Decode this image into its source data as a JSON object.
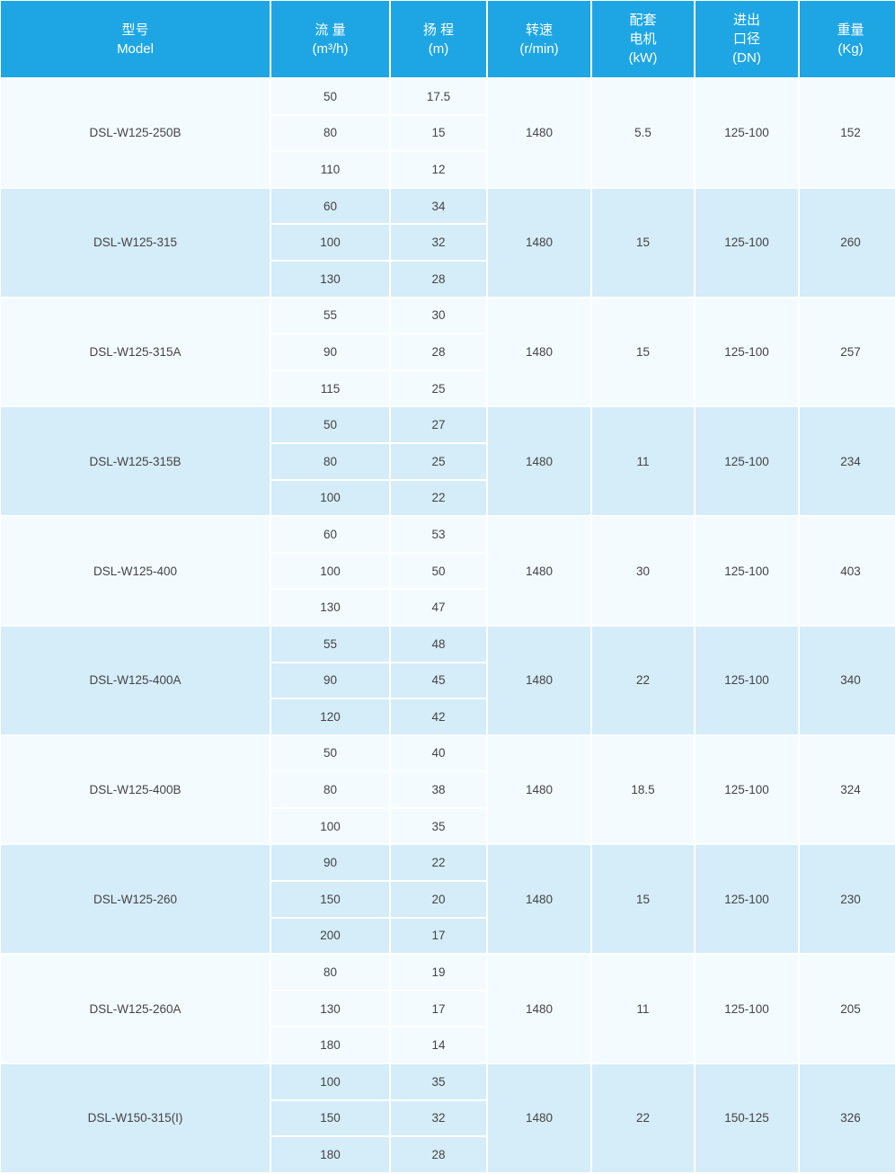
{
  "colors": {
    "header_bg": "#1ea6e4",
    "row_light": "#f3fbff",
    "row_dark": "#d5ecf9"
  },
  "headers": [
    [
      "型号",
      "Model"
    ],
    [
      "流 量",
      "(m³/h)"
    ],
    [
      "扬 程",
      "(m)"
    ],
    [
      "转速",
      "(r/min)"
    ],
    [
      "配套",
      "电机",
      "(kW)"
    ],
    [
      "进出",
      "口径",
      "(DN)"
    ],
    [
      "重量",
      "(Kg)"
    ]
  ],
  "rows": [
    {
      "model": "DSL-W125-250B",
      "flow": [
        "50",
        "80",
        "110"
      ],
      "head": [
        "17.5",
        "15",
        "12"
      ],
      "speed": "1480",
      "power": "5.5",
      "dn": "125-100",
      "weight": "152"
    },
    {
      "model": "DSL-W125-315",
      "flow": [
        "60",
        "100",
        "130"
      ],
      "head": [
        "34",
        "32",
        "28"
      ],
      "speed": "1480",
      "power": "15",
      "dn": "125-100",
      "weight": "260"
    },
    {
      "model": "DSL-W125-315A",
      "flow": [
        "55",
        "90",
        "115"
      ],
      "head": [
        "30",
        "28",
        "25"
      ],
      "speed": "1480",
      "power": "15",
      "dn": "125-100",
      "weight": "257"
    },
    {
      "model": "DSL-W125-315B",
      "flow": [
        "50",
        "80",
        "100"
      ],
      "head": [
        "27",
        "25",
        "22"
      ],
      "speed": "1480",
      "power": "11",
      "dn": "125-100",
      "weight": "234"
    },
    {
      "model": "DSL-W125-400",
      "flow": [
        "60",
        "100",
        "130"
      ],
      "head": [
        "53",
        "50",
        "47"
      ],
      "speed": "1480",
      "power": "30",
      "dn": "125-100",
      "weight": "403"
    },
    {
      "model": "DSL-W125-400A",
      "flow": [
        "55",
        "90",
        "120"
      ],
      "head": [
        "48",
        "45",
        "42"
      ],
      "speed": "1480",
      "power": "22",
      "dn": "125-100",
      "weight": "340"
    },
    {
      "model": "DSL-W125-400B",
      "flow": [
        "50",
        "80",
        "100"
      ],
      "head": [
        "40",
        "38",
        "35"
      ],
      "speed": "1480",
      "power": "18.5",
      "dn": "125-100",
      "weight": "324"
    },
    {
      "model": "DSL-W125-260",
      "flow": [
        "90",
        "150",
        "200"
      ],
      "head": [
        "22",
        "20",
        "17"
      ],
      "speed": "1480",
      "power": "15",
      "dn": "125-100",
      "weight": "230"
    },
    {
      "model": "DSL-W125-260A",
      "flow": [
        "80",
        "130",
        "180"
      ],
      "head": [
        "19",
        "17",
        "14"
      ],
      "speed": "1480",
      "power": "11",
      "dn": "125-100",
      "weight": "205"
    },
    {
      "model": "DSL-W150-315(I)",
      "flow": [
        "100",
        "150",
        "180"
      ],
      "head": [
        "35",
        "32",
        "28"
      ],
      "speed": "1480",
      "power": "22",
      "dn": "150-125",
      "weight": "326"
    }
  ]
}
